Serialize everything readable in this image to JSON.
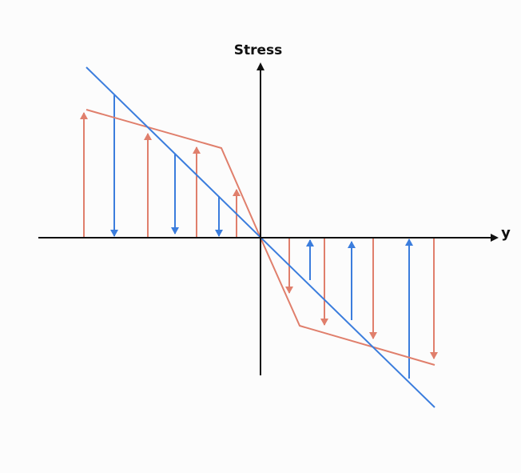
{
  "axes": {
    "vertical_label": "Stress",
    "horizontal_label": "y"
  }
}
